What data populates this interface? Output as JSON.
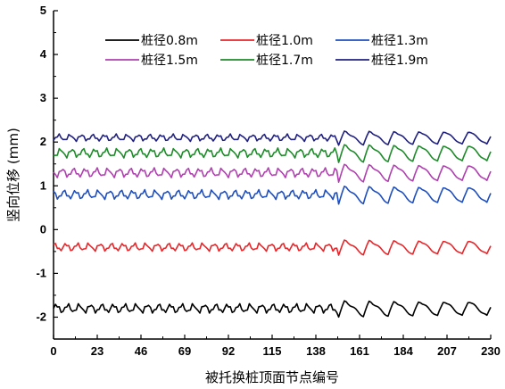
{
  "chart_data": {
    "type": "line",
    "title": "",
    "xlabel": "被托换桩顶面节点编号",
    "ylabel": "竖向位移 (mm)",
    "xlim": [
      0,
      230
    ],
    "ylim": [
      -2.5,
      5
    ],
    "xticks": [
      0,
      23,
      46,
      69,
      92,
      115,
      138,
      161,
      184,
      207,
      230
    ],
    "yticks": [
      -2,
      -1,
      0,
      1,
      2,
      3,
      4,
      5
    ],
    "legend_position": "top",
    "series": [
      {
        "name": "桩径0.8m",
        "color": "#000000",
        "base": -1.8,
        "amp": 0.08,
        "amp_late": 0.18
      },
      {
        "name": "桩径1.0m",
        "color": "#e8262a",
        "base": -0.4,
        "amp": 0.07,
        "amp_late": 0.17
      },
      {
        "name": "桩径1.3m",
        "color": "#1f4fbf",
        "base": 0.8,
        "amp": 0.08,
        "amp_late": 0.2
      },
      {
        "name": "桩径1.5m",
        "color": "#b040b0",
        "base": 1.3,
        "amp": 0.08,
        "amp_late": 0.2
      },
      {
        "name": "桩径1.7m",
        "color": "#1e8c2a",
        "base": 1.75,
        "amp": 0.08,
        "amp_late": 0.2
      },
      {
        "name": "桩径1.9m",
        "color": "#202080",
        "base": 2.1,
        "amp": 0.06,
        "amp_late": 0.16
      }
    ]
  }
}
